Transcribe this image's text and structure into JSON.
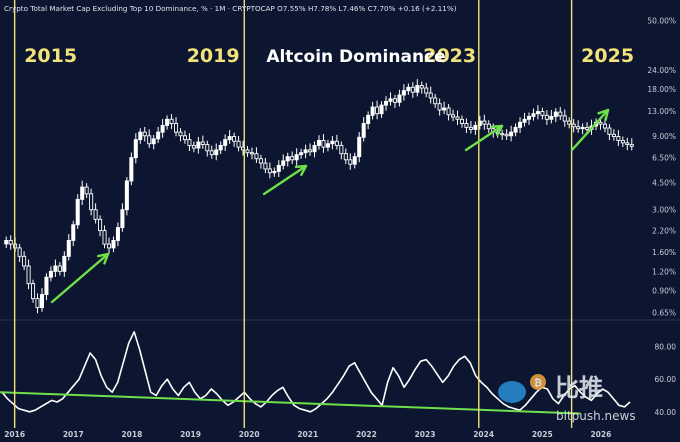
{
  "header": {
    "info": "Crypto Total Market Cap Excluding Top 10 Dominance, % · 1M · CRYPTOCAP  O7.55%  H7.78%  L7.46%  C7.70%  +0.16 (+2.11%)"
  },
  "annotations": {
    "years_big": [
      "2015",
      "2019",
      "2023",
      "2025"
    ],
    "title": "Altcoin Dominance",
    "watermark_cn": "比推",
    "watermark_url": "bitpush.news"
  },
  "colors": {
    "background": "#0c1630",
    "bull_candle": "#ffffff",
    "bear_candle": "#ffffff",
    "vline": "#f3e27a",
    "year_text": "#f3e27a",
    "arrow": "#6fe04a",
    "trendline": "#6fe04a",
    "rsi_line": "#ffffff",
    "axis_text": "#c7cbd6"
  },
  "chart_data": [
    {
      "type": "candlestick",
      "title": "Crypto Total Market Cap Excluding Top 10 Dominance, %",
      "interval": "1M",
      "scale": "log",
      "ylim": [
        0.6,
        55
      ],
      "y_ticks": [
        "50.00%",
        "24.00%",
        "18.00%",
        "13.00%",
        "9.00%",
        "6.50%",
        "4.50%",
        "3.00%",
        "2.20%",
        "1.60%",
        "1.20%",
        "0.90%",
        "0.65%"
      ],
      "x_ticks": [
        "2016",
        "2017",
        "2018",
        "2019",
        "2020",
        "2021",
        "2022",
        "2023",
        "2024",
        "2025",
        "2026"
      ],
      "xlim": [
        "2015-10",
        "2026-09"
      ],
      "vertical_lines": [
        "2016-01",
        "2019-12",
        "2023-12",
        "2025-07"
      ],
      "closes_approx": [
        1.9,
        1.8,
        1.7,
        1.5,
        1.3,
        1.0,
        0.8,
        0.7,
        0.85,
        1.1,
        1.2,
        1.3,
        1.2,
        1.5,
        1.9,
        2.4,
        3.5,
        4.2,
        3.8,
        3.0,
        2.6,
        2.2,
        1.8,
        1.7,
        1.9,
        2.3,
        3.0,
        4.6,
        6.5,
        8.5,
        9.5,
        9.0,
        8.0,
        8.6,
        9.5,
        10.5,
        11.5,
        10.8,
        9.5,
        9.0,
        8.5,
        7.8,
        7.5,
        8.2,
        7.9,
        7.2,
        6.8,
        7.3,
        7.8,
        8.5,
        8.9,
        8.3,
        7.6,
        7.3,
        7.0,
        6.9,
        6.4,
        6.0,
        5.5,
        5.2,
        5.3,
        5.8,
        6.2,
        6.6,
        6.3,
        6.8,
        7.0,
        7.3,
        7.1,
        7.8,
        8.4,
        7.6,
        8.0,
        8.3,
        7.8,
        6.9,
        6.3,
        5.9,
        6.6,
        8.8,
        10.8,
        12.2,
        13.8,
        12.5,
        14.2,
        15.0,
        15.6,
        14.8,
        16.5,
        17.6,
        18.5,
        17.2,
        19.0,
        18.3,
        17.0,
        15.8,
        14.5,
        13.2,
        13.6,
        12.3,
        11.9,
        11.5,
        10.8,
        10.2,
        9.9,
        10.5,
        11.2,
        10.7,
        10.0,
        9.5,
        9.3,
        9.2,
        9.0,
        9.5,
        10.2,
        11.0,
        11.5,
        12.0,
        12.5,
        12.9,
        12.2,
        11.5,
        12.0,
        12.8,
        12.1,
        11.2,
        10.7,
        10.3,
        10.0,
        10.2,
        9.9,
        10.4,
        11.0,
        10.7,
        10.1,
        9.2,
        8.9,
        8.4,
        8.1,
        7.9,
        7.7
      ]
    },
    {
      "type": "line",
      "title": "",
      "ylim": [
        35,
        95
      ],
      "y_ticks": [
        "80.00",
        "60.00",
        "40.00"
      ],
      "values_approx": [
        52,
        48,
        45,
        42,
        41,
        40,
        41,
        43,
        45,
        47,
        46,
        48,
        52,
        56,
        60,
        68,
        76,
        72,
        62,
        55,
        52,
        58,
        70,
        82,
        89,
        78,
        65,
        52,
        50,
        56,
        60,
        54,
        50,
        55,
        58,
        52,
        48,
        50,
        54,
        51,
        47,
        44,
        46,
        49,
        52,
        48,
        45,
        43,
        46,
        50,
        53,
        55,
        49,
        44,
        42,
        41,
        40,
        42,
        45,
        48,
        52,
        57,
        62,
        68,
        70,
        64,
        58,
        52,
        48,
        44,
        58,
        67,
        62,
        55,
        60,
        66,
        71,
        72,
        68,
        63,
        58,
        62,
        68,
        72,
        74,
        70,
        62,
        58,
        55,
        51,
        48,
        45,
        43,
        42,
        41,
        44,
        48,
        52,
        55,
        54,
        48,
        45,
        50,
        54,
        56,
        52,
        49,
        47,
        51,
        54,
        52,
        48,
        44,
        43,
        46
      ],
      "trendline": {
        "from": [
          "2015-10",
          52
        ],
        "to": [
          "2026-09",
          39
        ]
      }
    }
  ]
}
